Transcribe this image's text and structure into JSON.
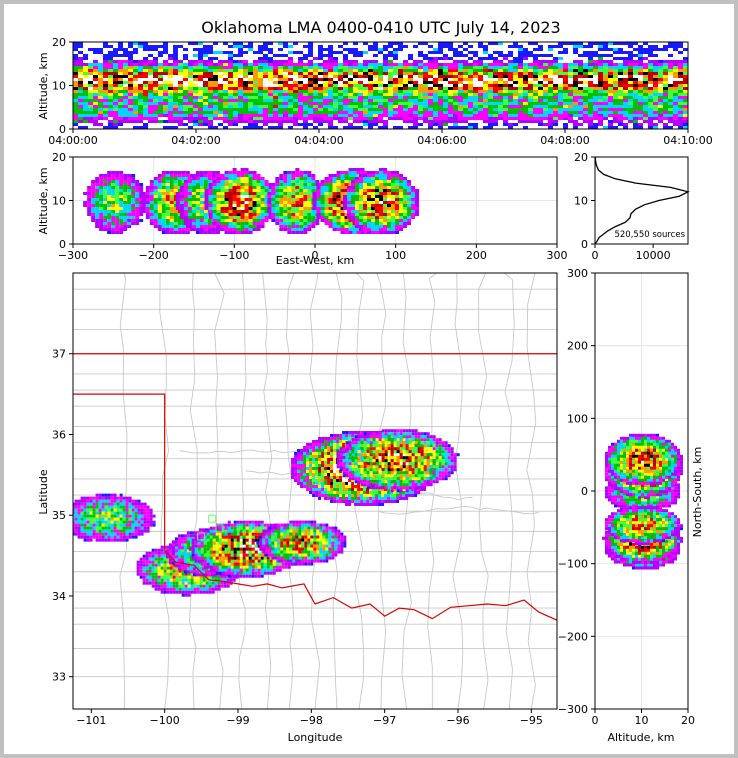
{
  "chart_data": {
    "type": "heatmap",
    "title": "Oklahoma LMA 0400-0410 UTC July 14, 2023",
    "colors": {
      "density_scale": [
        "#1a1aff",
        "#b400ff",
        "#ff00ff",
        "#00d5ff",
        "#00c000",
        "#40ff40",
        "#ffff00",
        "#ff9900",
        "#ff0000",
        "#c00000",
        "#000000",
        "#ffffff"
      ],
      "state_border": "#dd0000",
      "county_lines": "#c8c8c8",
      "highlight_box": "#66ff66"
    },
    "panels": {
      "time_height": {
        "ylabel": "Altitude, km",
        "xlim": [
          "04:00:00",
          "04:10:00"
        ],
        "ylim": [
          0,
          20
        ],
        "yticks": [
          "0",
          "10",
          "20"
        ],
        "xticks": [
          "04:00:00",
          "04:02:00",
          "04:04:00",
          "04:06:00",
          "04:08:00",
          "04:10:00"
        ]
      },
      "ew_height": {
        "xlabel": "East-West, km",
        "ylabel": "Altitude, km",
        "xlim": [
          -300,
          300
        ],
        "ylim": [
          0,
          20
        ],
        "xticks": [
          "−300",
          "−200",
          "−100",
          "0",
          "100",
          "200",
          "300"
        ],
        "yticks": [
          "0",
          "10",
          "20"
        ]
      },
      "histogram": {
        "annotation": "520,550 sources",
        "xticks": [
          "0",
          "10000"
        ],
        "yticks": [
          "0",
          "10",
          "20"
        ],
        "ylim": [
          0,
          20
        ],
        "xlim": [
          0,
          16000
        ],
        "profile": [
          {
            "alt": 0,
            "count": 0
          },
          {
            "alt": 0.5,
            "count": 300
          },
          {
            "alt": 1.5,
            "count": 700
          },
          {
            "alt": 3,
            "count": 2200
          },
          {
            "alt": 4,
            "count": 3500
          },
          {
            "alt": 5,
            "count": 5200
          },
          {
            "alt": 6,
            "count": 6000
          },
          {
            "alt": 7,
            "count": 6200
          },
          {
            "alt": 8,
            "count": 7000
          },
          {
            "alt": 9,
            "count": 8500
          },
          {
            "alt": 10,
            "count": 11000
          },
          {
            "alt": 11,
            "count": 14500
          },
          {
            "alt": 12,
            "count": 16000
          },
          {
            "alt": 13,
            "count": 13000
          },
          {
            "alt": 14,
            "count": 7000
          },
          {
            "alt": 15,
            "count": 3500
          },
          {
            "alt": 16,
            "count": 1500
          },
          {
            "alt": 17,
            "count": 600
          },
          {
            "alt": 18,
            "count": 250
          },
          {
            "alt": 19,
            "count": 100
          },
          {
            "alt": 20,
            "count": 40
          }
        ]
      },
      "plan_view": {
        "xlabel": "Longitude",
        "ylabel": "Latitude",
        "xlim": [
          -101.25,
          -94.65
        ],
        "ylim": [
          32.6,
          38.0
        ],
        "xticks": [
          "−101",
          "−100",
          "−99",
          "−98",
          "−97",
          "−96",
          "−95"
        ],
        "yticks": [
          "33",
          "34",
          "35",
          "36",
          "37"
        ]
      },
      "ns_height": {
        "xlabel": "Altitude, km",
        "ylabel": "North-South, km",
        "xlim": [
          0,
          20
        ],
        "ylim": [
          -300,
          300
        ],
        "xticks": [
          "0",
          "10",
          "20"
        ],
        "yticks": [
          "−300",
          "−200",
          "−100",
          "0",
          "100",
          "200",
          "300"
        ]
      }
    },
    "storms": [
      {
        "lon": -100.8,
        "lat": 34.98,
        "ew": -250,
        "ns": 0,
        "intensity": 0.5,
        "spread": 0.18
      },
      {
        "lon": -99.7,
        "lat": 34.35,
        "ew": -175,
        "ns": -75,
        "intensity": 0.65,
        "spread": 0.2
      },
      {
        "lon": -99.35,
        "lat": 34.55,
        "ew": -135,
        "ns": -60,
        "intensity": 0.55,
        "spread": 0.18
      },
      {
        "lon": -98.9,
        "lat": 34.6,
        "ew": -95,
        "ns": -65,
        "intensity": 0.85,
        "spread": 0.22
      },
      {
        "lon": -98.15,
        "lat": 34.68,
        "ew": -25,
        "ns": -45,
        "intensity": 0.7,
        "spread": 0.15
      },
      {
        "lon": -97.3,
        "lat": 35.6,
        "ew": 50,
        "ns": 35,
        "intensity": 1.0,
        "spread": 0.32
      },
      {
        "lon": -96.85,
        "lat": 35.7,
        "ew": 80,
        "ns": 45,
        "intensity": 0.8,
        "spread": 0.25
      }
    ]
  }
}
